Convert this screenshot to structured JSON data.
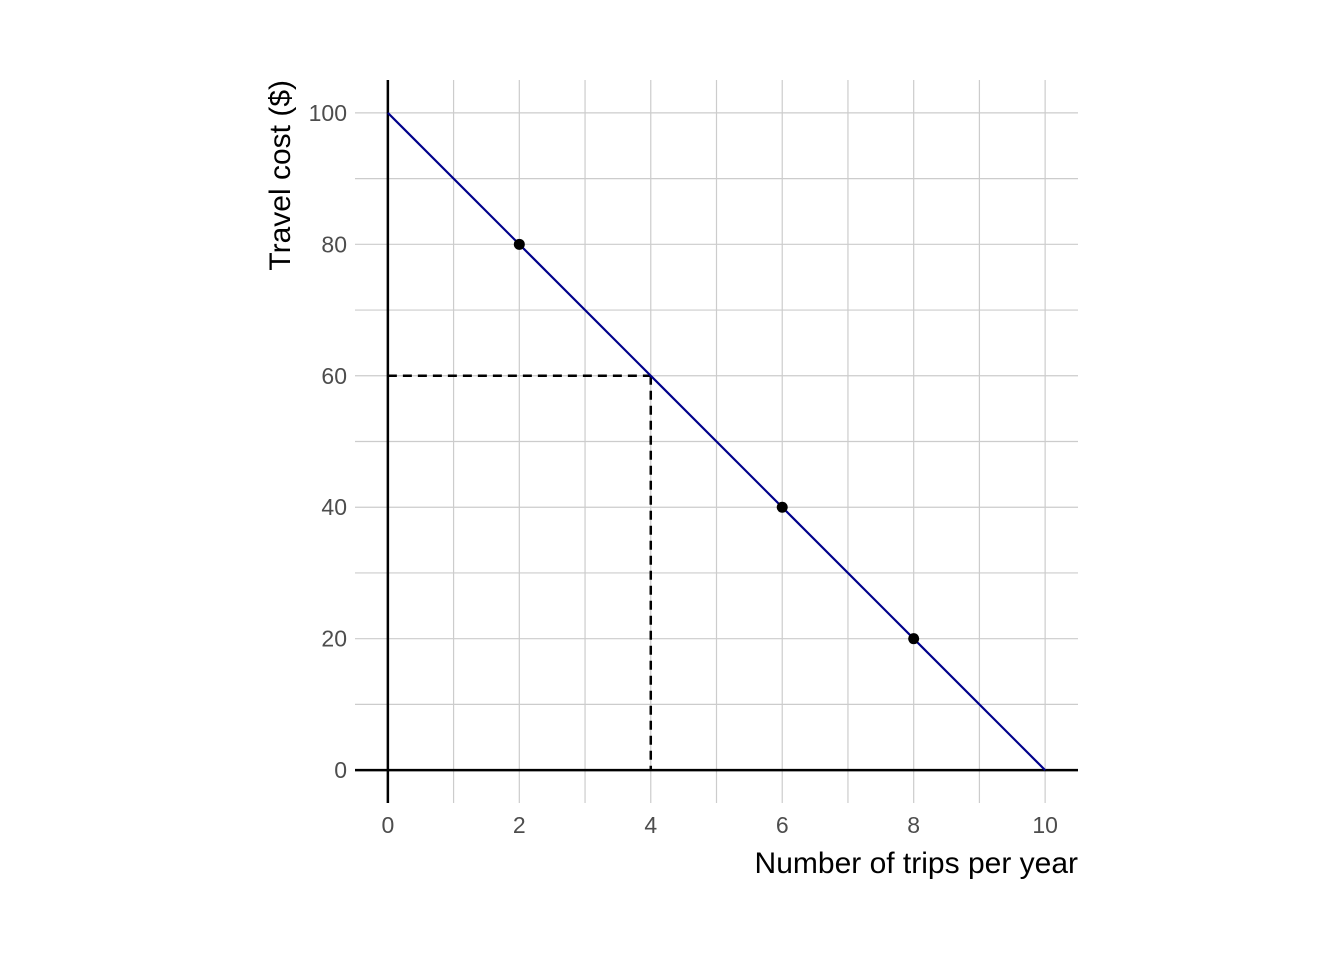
{
  "chart_data": {
    "type": "line",
    "title": "",
    "xlabel": "Number of trips per year",
    "ylabel": "Travel cost ($)",
    "xlim": [
      -0.5,
      10.5
    ],
    "ylim": [
      -5,
      105
    ],
    "x_ticks": [
      0,
      2,
      4,
      6,
      8,
      10
    ],
    "y_ticks": [
      0,
      20,
      40,
      60,
      80,
      100
    ],
    "x_minor": [
      1,
      3,
      5,
      7,
      9
    ],
    "y_minor": [
      10,
      30,
      50,
      70,
      90
    ],
    "x_tick_labels": [
      "0",
      "2",
      "4",
      "6",
      "8",
      "10"
    ],
    "y_tick_labels": [
      "0",
      "20",
      "40",
      "60",
      "80",
      "100"
    ],
    "grid": true,
    "legend": "none",
    "series": [
      {
        "x": [
          0,
          10
        ],
        "y": [
          100,
          0
        ],
        "color": "#00008b"
      }
    ],
    "points": {
      "x": [
        2,
        6,
        8
      ],
      "y": [
        80,
        40,
        20
      ],
      "color": "#000000"
    },
    "reference_lines": [
      {
        "x": [
          0,
          4
        ],
        "y": [
          60,
          60
        ],
        "style": "dashed",
        "color": "#000000"
      },
      {
        "x": [
          4,
          4
        ],
        "y": [
          60,
          0
        ],
        "style": "dashed",
        "color": "#000000"
      }
    ]
  }
}
